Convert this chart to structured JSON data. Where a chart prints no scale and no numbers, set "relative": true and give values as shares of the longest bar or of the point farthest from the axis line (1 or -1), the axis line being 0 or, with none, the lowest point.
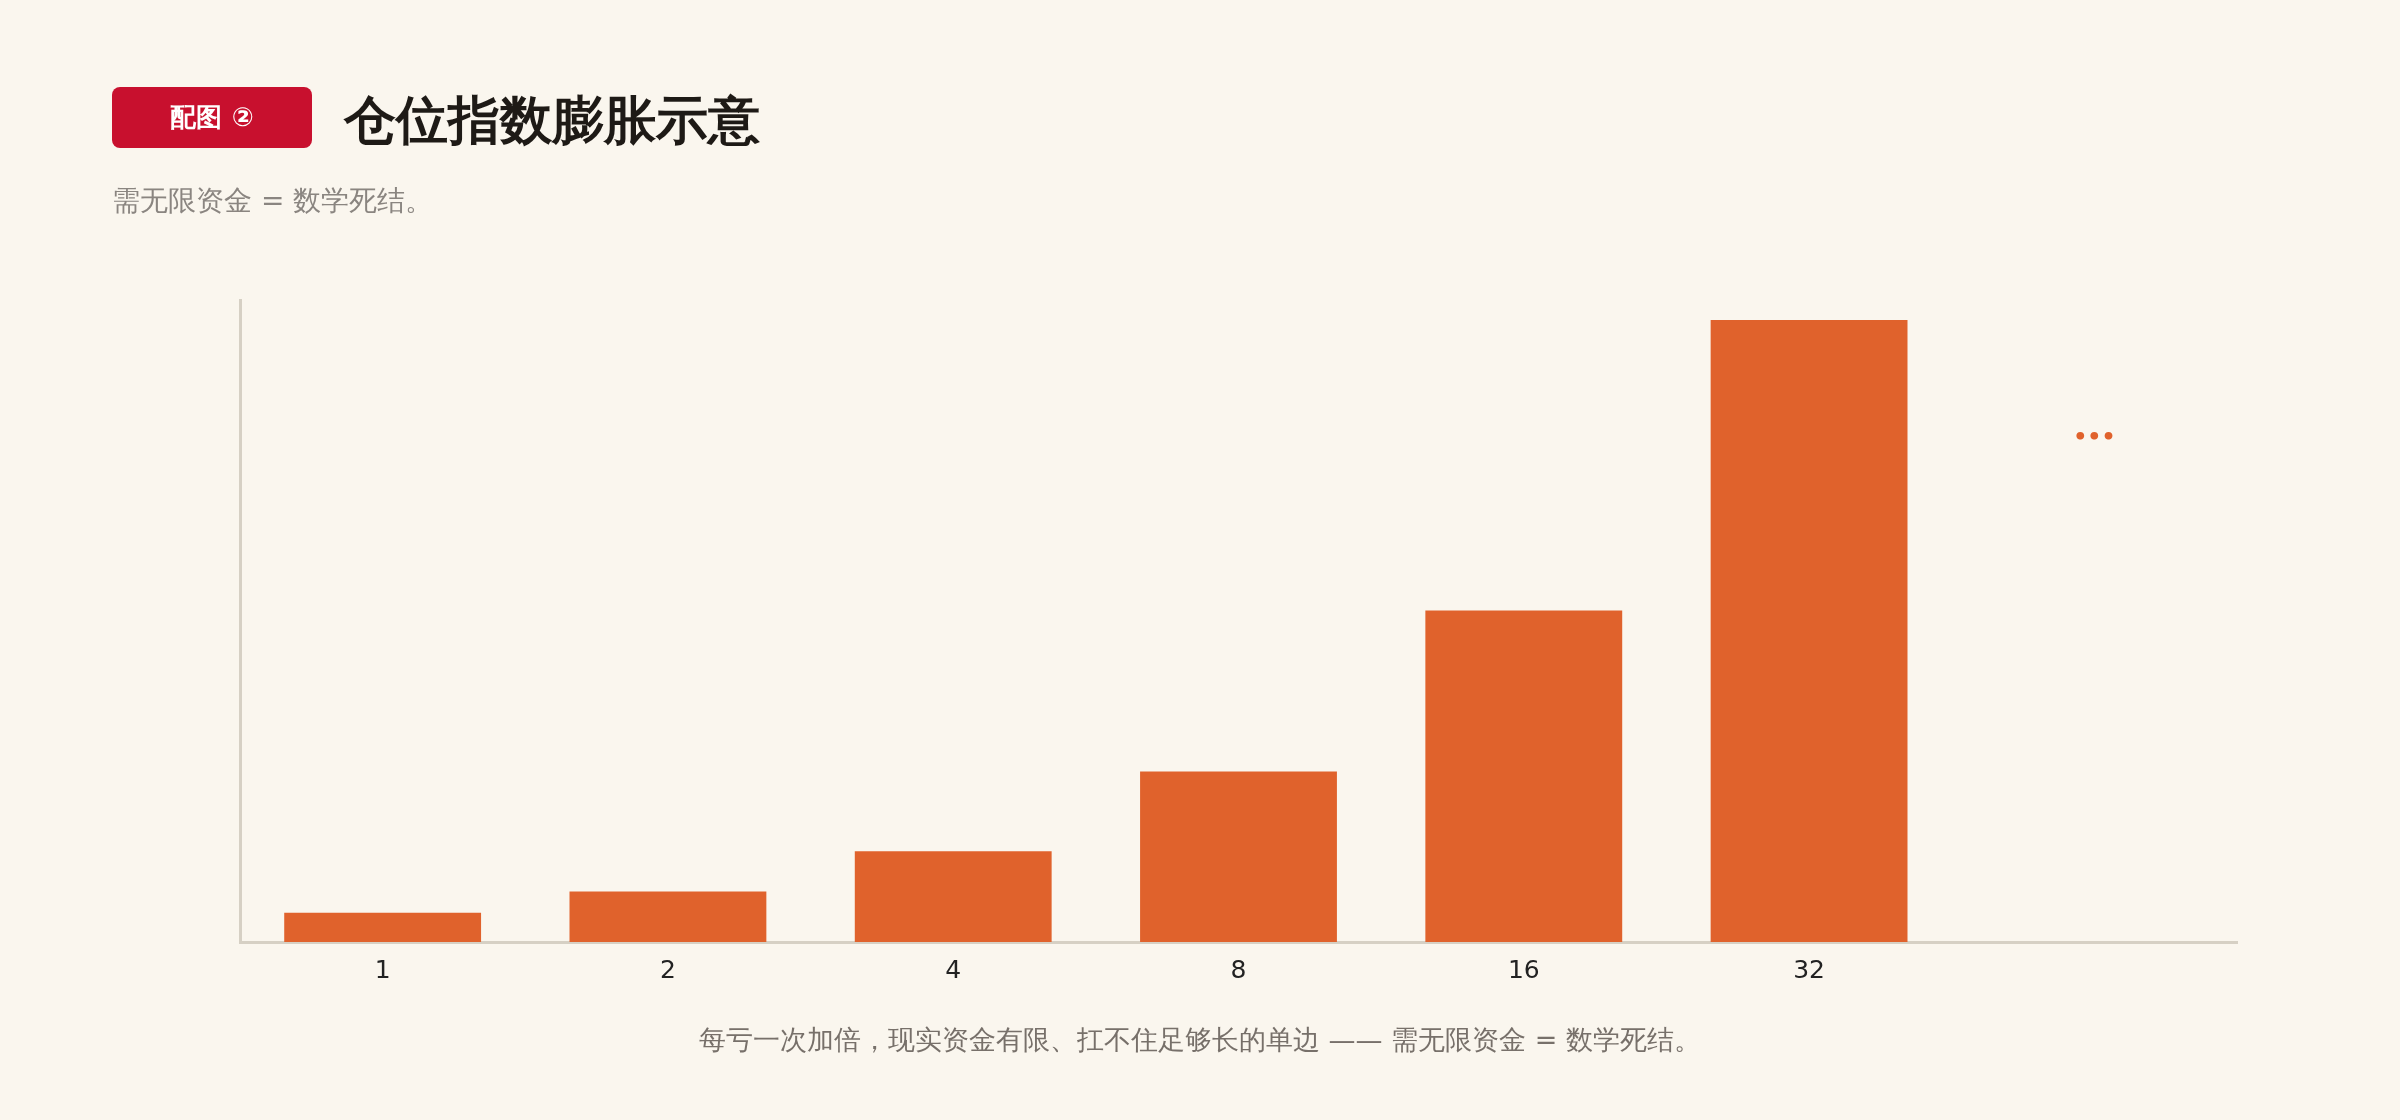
{
  "chart_data": {
    "type": "bar",
    "title": "仓位指数膨胀示意",
    "subtitle": "需无限资金 = 数学死结。",
    "categories": [
      "1",
      "2",
      "4",
      "8",
      "16",
      "32",
      null
    ],
    "values": [
      0.047,
      0.081,
      0.146,
      0.274,
      0.533,
      1,
      null
    ],
    "color": "#e0622c",
    "relative": true,
    "grid": false,
    "legend": false,
    "annotations": [
      "配图 ②",
      "•••",
      "每亏一次加倍，现实资金有限、扛不住足够长的单边 —— 需无限资金 = 数学死结。"
    ]
  }
}
